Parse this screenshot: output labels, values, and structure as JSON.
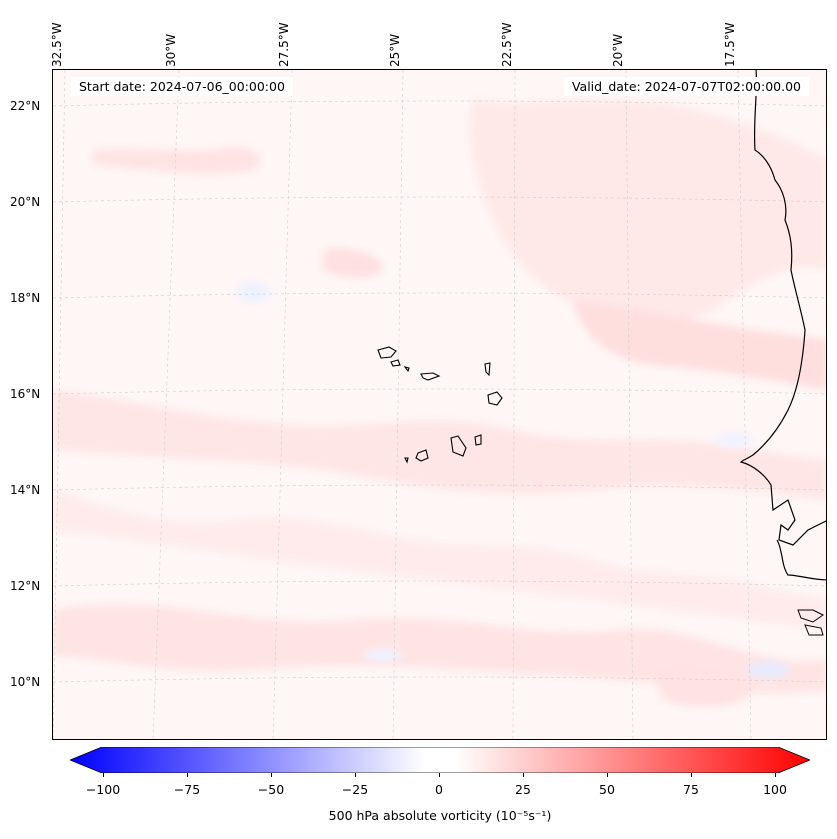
{
  "map": {
    "start_date": "Start date: 2024-07-06_00:00:00",
    "valid_date": "Valid_date: 2024-07-07T02:00:00.00",
    "lon_labels": [
      "32.5°W",
      "30°W",
      "27.5°W",
      "25°W",
      "22.5°W",
      "20°W",
      "17.5°W"
    ],
    "lat_labels": [
      "22°N",
      "20°N",
      "18°N",
      "16°N",
      "14°N",
      "12°N",
      "10°N"
    ],
    "field": "500 hPa absolute vorticity",
    "region": "Cape Verde Islands and West African coast"
  },
  "colorbar": {
    "label": "500 hPa absolute vorticity (10⁻⁵s⁻¹)",
    "ticks": [
      "−100",
      "−75",
      "−50",
      "−25",
      "0",
      "25",
      "50",
      "75",
      "100"
    ],
    "min": -100,
    "max": 100,
    "colors": {
      "low": "#0000ff",
      "mid": "#ffffff",
      "high": "#ff0000"
    }
  }
}
